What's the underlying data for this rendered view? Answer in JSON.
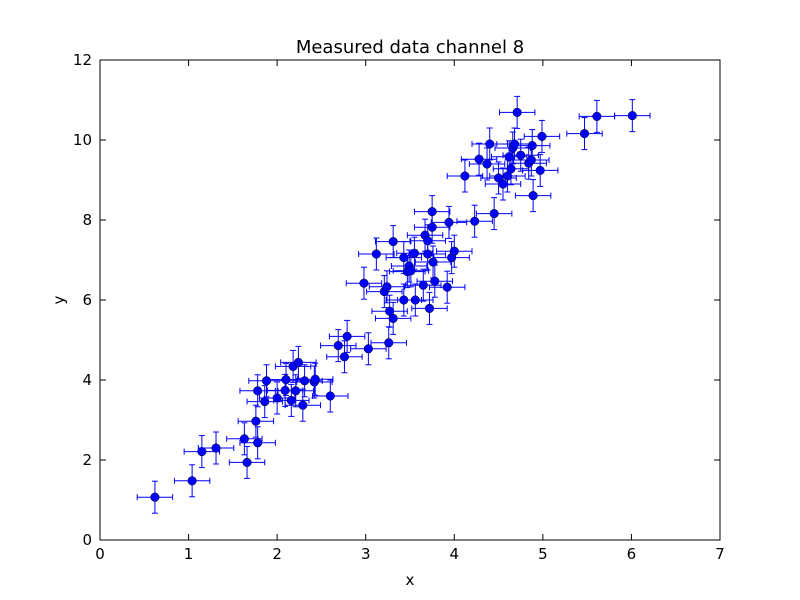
{
  "chart_data": {
    "type": "scatter",
    "title": "Measured data channel 8",
    "xlabel": "x",
    "ylabel": "y",
    "xlim": [
      0,
      7
    ],
    "ylim": [
      0,
      12
    ],
    "xticks": [
      "0",
      "1",
      "2",
      "3",
      "4",
      "5",
      "6",
      "7"
    ],
    "yticks": [
      "0",
      "2",
      "4",
      "6",
      "8",
      "10",
      "12"
    ],
    "grid": false,
    "legend": null,
    "marker_color": "#0000ff",
    "error_bars": {
      "x": 0.2,
      "y": 0.4
    },
    "series": [
      {
        "points": [
          [
            0.62,
            1.07
          ],
          [
            1.04,
            1.48
          ],
          [
            1.15,
            2.21
          ],
          [
            1.31,
            2.3
          ],
          [
            1.63,
            2.53
          ],
          [
            1.66,
            1.94
          ],
          [
            1.76,
            2.97
          ],
          [
            1.78,
            2.43
          ],
          [
            1.78,
            3.73
          ],
          [
            1.86,
            3.46
          ],
          [
            1.88,
            3.98
          ],
          [
            2.0,
            3.55
          ],
          [
            2.09,
            3.74
          ],
          [
            2.1,
            4.01
          ],
          [
            2.16,
            3.49
          ],
          [
            2.18,
            4.34
          ],
          [
            2.21,
            3.73
          ],
          [
            2.24,
            4.44
          ],
          [
            2.29,
            3.37
          ],
          [
            2.31,
            3.98
          ],
          [
            2.42,
            3.95
          ],
          [
            2.43,
            4.02
          ],
          [
            2.6,
            3.6
          ],
          [
            2.69,
            4.86
          ],
          [
            2.76,
            4.58
          ],
          [
            2.79,
            5.09
          ],
          [
            3.03,
            4.78
          ],
          [
            3.12,
            7.15
          ],
          [
            2.98,
            6.42
          ],
          [
            3.21,
            6.21
          ],
          [
            3.24,
            6.33
          ],
          [
            3.26,
            4.93
          ],
          [
            3.27,
            5.72
          ],
          [
            3.31,
            5.54
          ],
          [
            3.31,
            7.46
          ],
          [
            3.43,
            6.0
          ],
          [
            3.43,
            7.06
          ],
          [
            3.47,
            6.71
          ],
          [
            3.49,
            6.85
          ],
          [
            3.51,
            6.73
          ],
          [
            3.55,
            7.17
          ],
          [
            3.56,
            6.0
          ],
          [
            3.65,
            6.37
          ],
          [
            3.67,
            7.62
          ],
          [
            3.7,
            7.48
          ],
          [
            3.7,
            7.15
          ],
          [
            3.72,
            5.79
          ],
          [
            3.75,
            8.21
          ],
          [
            3.75,
            7.82
          ],
          [
            3.76,
            6.95
          ],
          [
            3.78,
            6.47
          ],
          [
            3.92,
            6.32
          ],
          [
            3.94,
            7.94
          ],
          [
            3.97,
            7.06
          ],
          [
            4.0,
            7.22
          ],
          [
            4.12,
            9.1
          ],
          [
            4.23,
            7.97
          ],
          [
            4.28,
            9.52
          ],
          [
            4.37,
            9.4
          ],
          [
            4.4,
            9.9
          ],
          [
            4.45,
            8.16
          ],
          [
            4.5,
            9.05
          ],
          [
            4.55,
            8.9
          ],
          [
            4.6,
            9.1
          ],
          [
            4.62,
            9.58
          ],
          [
            4.64,
            9.28
          ],
          [
            4.66,
            9.8
          ],
          [
            4.68,
            9.9
          ],
          [
            4.71,
            10.69
          ],
          [
            4.75,
            9.62
          ],
          [
            4.84,
            9.42
          ],
          [
            4.87,
            9.5
          ],
          [
            4.88,
            9.86
          ],
          [
            4.89,
            8.61
          ],
          [
            4.97,
            9.24
          ],
          [
            4.99,
            10.09
          ],
          [
            5.47,
            10.16
          ],
          [
            5.61,
            10.59
          ],
          [
            6.01,
            10.61
          ]
        ]
      }
    ]
  }
}
